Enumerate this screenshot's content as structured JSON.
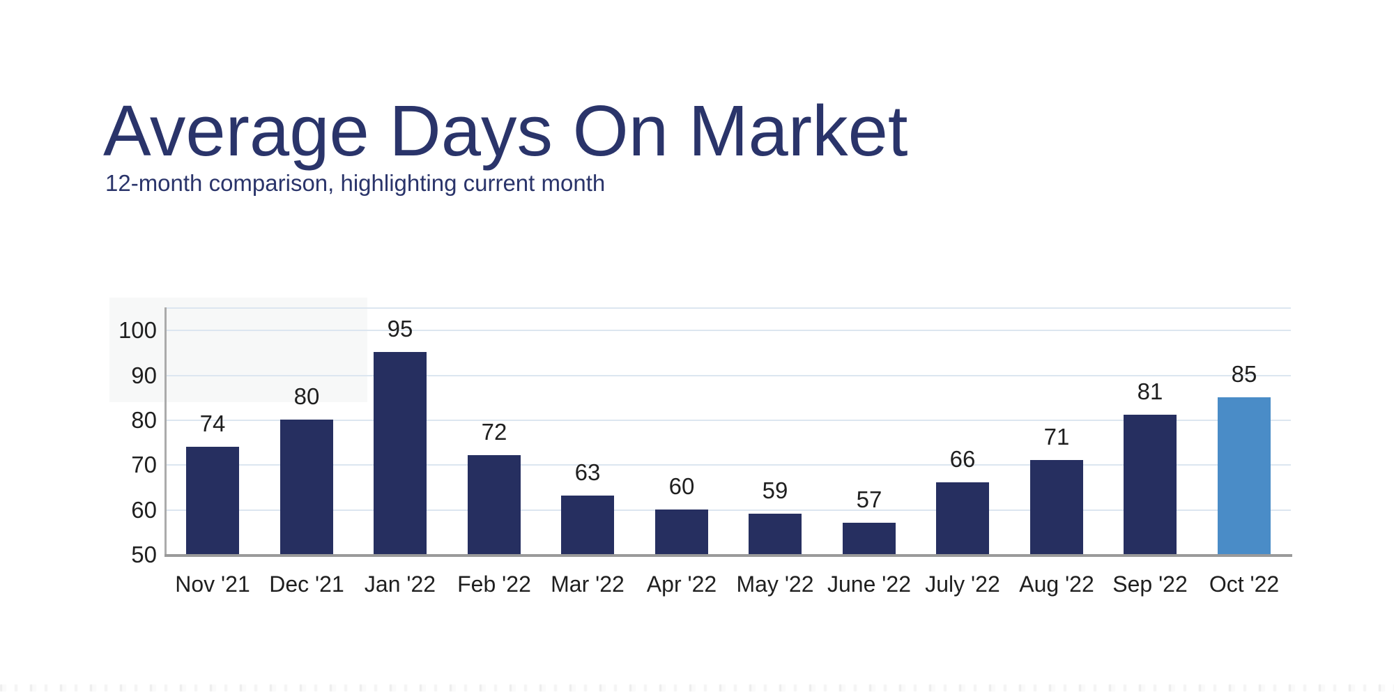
{
  "page": {
    "title": "Average Days On Market",
    "subtitle": "12-month comparison, highlighting current month"
  },
  "colors": {
    "title": "#2A346A",
    "bar": "#262F60",
    "bar_highlight": "#4A8CC7",
    "gridline": "#DCE6F0",
    "axis_y": "#ABABAB",
    "axis_x": "#9A9A9A",
    "label": "#1F1F1F",
    "panel_tint": "#F7F8F8"
  },
  "chart_data": {
    "type": "bar",
    "title": "Average Days On Market",
    "subtitle": "12-month comparison, highlighting current month",
    "categories": [
      "Nov '21",
      "Dec '21",
      "Jan '22",
      "Feb '22",
      "Mar '22",
      "Apr '22",
      "May '22",
      "June '22",
      "July '22",
      "Aug '22",
      "Sep '22",
      "Oct '22"
    ],
    "values": [
      74,
      80,
      95,
      72,
      63,
      60,
      59,
      57,
      66,
      71,
      81,
      85
    ],
    "highlight_index": 11,
    "highlighted_category": "Oct '22",
    "value_labels_shown": true,
    "xlabel": "",
    "ylabel": "",
    "yticks": [
      50,
      60,
      70,
      80,
      90,
      100
    ],
    "ylim": [
      50,
      105
    ],
    "grid": true,
    "legend": false
  }
}
